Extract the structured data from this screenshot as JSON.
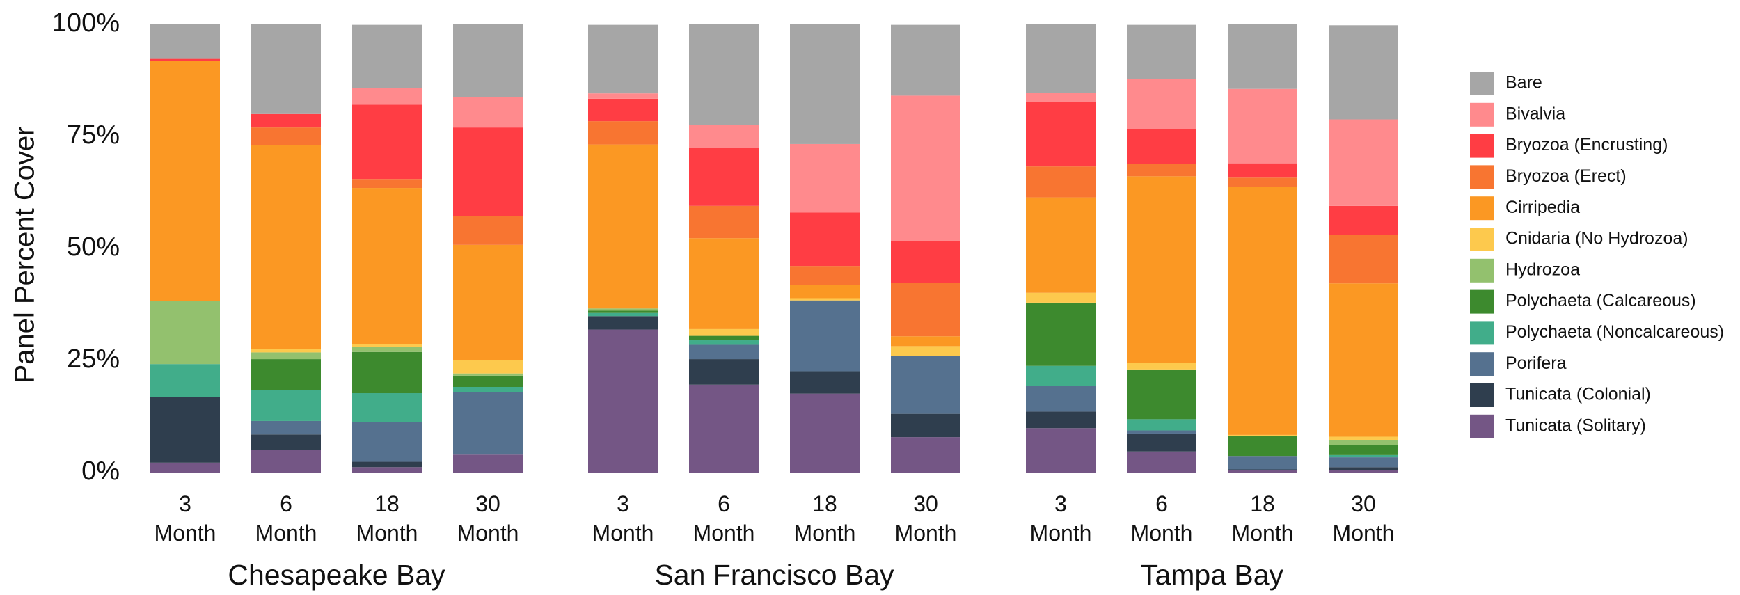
{
  "chart_data": {
    "type": "stacked-bar",
    "y_label": "Panel Percent Cover",
    "ylim": [
      0,
      100
    ],
    "yticks": [
      {
        "value": 0,
        "label": "0%"
      },
      {
        "value": 25,
        "label": "25%"
      },
      {
        "value": 50,
        "label": "50%"
      },
      {
        "value": 75,
        "label": "75%"
      },
      {
        "value": 100,
        "label": "100%"
      }
    ],
    "groups": [
      "Chesapeake Bay",
      "San Francisco Bay",
      "Tampa Bay"
    ],
    "categories": [
      "3 Month",
      "6 Month",
      "18 Month",
      "30 Month",
      "3 Month",
      "6 Month",
      "18 Month",
      "30 Month",
      "3 Month",
      "6 Month",
      "18 Month",
      "30 Month"
    ],
    "series": [
      {
        "name": "Bare",
        "color": "#a6a6a6",
        "values": [
          7.7,
          20.0,
          14.1,
          16.3,
          15.3,
          22.5,
          26.7,
          15.8,
          15.3,
          12.1,
          14.4,
          21.0
        ]
      },
      {
        "name": "Bivalvia",
        "color": "#ff8a8d",
        "values": [
          0,
          0,
          3.7,
          6.7,
          1.2,
          5.2,
          15.3,
          32.4,
          2.0,
          11.1,
          16.6,
          19.3
        ]
      },
      {
        "name": "Bryozoa (Encrusting)",
        "color": "#ff3d44",
        "values": [
          0.5,
          3.0,
          16.6,
          19.8,
          5.0,
          12.9,
          11.9,
          9.4,
          14.4,
          7.9,
          3.2,
          6.4
        ]
      },
      {
        "name": "Bryozoa (Erect)",
        "color": "#f87531",
        "values": [
          0,
          4.0,
          2.0,
          6.4,
          5.2,
          7.2,
          4.2,
          11.9,
          6.9,
          2.7,
          2.0,
          10.9
        ]
      },
      {
        "name": "Cirripedia",
        "color": "#fb9823",
        "values": [
          53.5,
          45.5,
          34.9,
          25.7,
          36.6,
          20.3,
          3.0,
          2.2,
          21.3,
          41.6,
          55.4,
          34.2
        ]
      },
      {
        "name": "Cnidaria (No Hydrozoa)",
        "color": "#fdc94d",
        "values": [
          0,
          0.7,
          0.5,
          3.0,
          0,
          1.5,
          0.5,
          2.2,
          2.2,
          1.5,
          0.2,
          0.7
        ]
      },
      {
        "name": "Hydrozoa",
        "color": "#93c16e",
        "values": [
          14.1,
          1.5,
          1.2,
          0.5,
          0.5,
          0,
          0,
          0,
          0,
          0,
          0,
          1.2
        ]
      },
      {
        "name": "Polychaeta (Calcareous)",
        "color": "#3d8a2e",
        "values": [
          0,
          6.9,
          9.2,
          2.5,
          0.5,
          1.0,
          0,
          0,
          14.1,
          11.1,
          4.5,
          2.2
        ]
      },
      {
        "name": "Polychaeta (Noncalcareous)",
        "color": "#41ad8a",
        "values": [
          7.4,
          6.9,
          6.4,
          1.2,
          0.7,
          1.0,
          0,
          0,
          4.5,
          2.5,
          0,
          0.5
        ]
      },
      {
        "name": "Porifera",
        "color": "#55718f",
        "values": [
          0,
          3.0,
          8.9,
          13.9,
          0,
          3.2,
          15.8,
          12.9,
          5.7,
          0.7,
          3.0,
          2.2
        ]
      },
      {
        "name": "Tunicata (Colonial)",
        "color": "#2f3e4e",
        "values": [
          14.6,
          3.5,
          1.2,
          0,
          3.0,
          5.7,
          5.0,
          5.2,
          3.7,
          4.0,
          0.2,
          0.7
        ]
      },
      {
        "name": "Tunicata (Solitary)",
        "color": "#745685",
        "values": [
          2.2,
          5.0,
          1.2,
          4.0,
          31.9,
          19.6,
          17.6,
          7.9,
          9.9,
          4.7,
          0.5,
          0.5
        ]
      }
    ]
  }
}
